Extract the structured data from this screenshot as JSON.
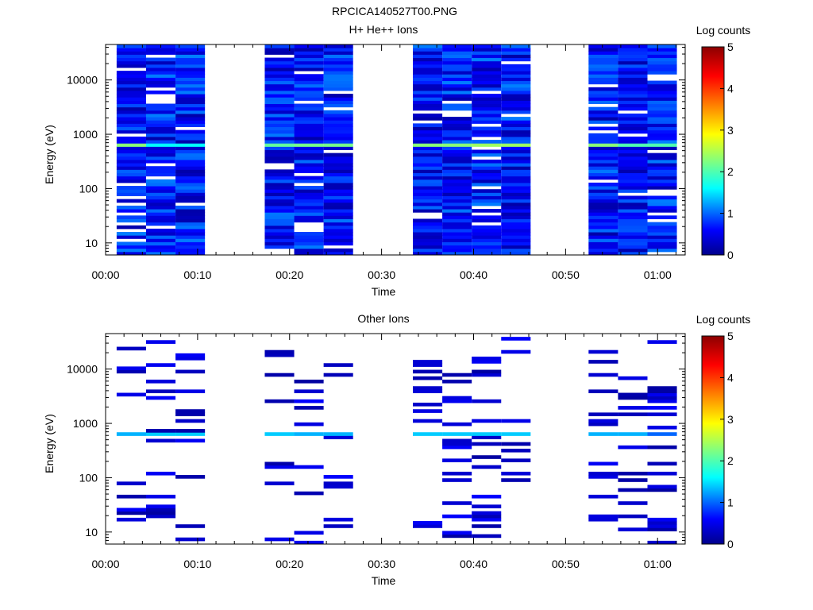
{
  "title": "RPCICA140527T00.PNG",
  "chart_data": [
    {
      "type": "heatmap",
      "title": "H+ He++ Ions",
      "xlabel": "Time",
      "ylabel": "Energy (eV)",
      "colorbar_label": "Log counts",
      "xlim_minutes": [
        0,
        63
      ],
      "ylim": [
        6,
        45000
      ],
      "y_scale": "log",
      "x_ticks": [
        "00:00",
        "00:10",
        "00:20",
        "00:30",
        "00:40",
        "00:50",
        "01:00"
      ],
      "y_ticks": [
        "10",
        "100",
        "1000",
        "10000"
      ],
      "y_tick_values": [
        10,
        100,
        1000,
        10000
      ],
      "colorbar_ticks": [
        "0",
        "1",
        "2",
        "3",
        "4",
        "5"
      ],
      "colorbar_range": [
        0,
        5
      ],
      "time_columns": [
        {
          "start": 1.2,
          "end": 4.4
        },
        {
          "start": 4.4,
          "end": 7.6
        },
        {
          "start": 7.6,
          "end": 10.8
        },
        {
          "start": 17.3,
          "end": 20.5
        },
        {
          "start": 20.5,
          "end": 23.7
        },
        {
          "start": 23.7,
          "end": 26.9
        },
        {
          "start": 33.4,
          "end": 36.6
        },
        {
          "start": 36.6,
          "end": 39.8
        },
        {
          "start": 39.8,
          "end": 43.0
        },
        {
          "start": 43.0,
          "end": 46.2
        },
        {
          "start": 52.5,
          "end": 55.7
        },
        {
          "start": 55.7,
          "end": 58.9
        },
        {
          "start": 58.9,
          "end": 62.1
        }
      ],
      "highlight_band": {
        "energy_low": 560,
        "energy_high": 720,
        "values": [
          2.3,
          1.6,
          1.6,
          2.1,
          2.2,
          2.2,
          2.3,
          2.3,
          2.4,
          2.4,
          2.3,
          2.0,
          2.0
        ]
      },
      "fill_rule": "dense"
    },
    {
      "type": "heatmap",
      "title": "Other Ions",
      "xlabel": "Time",
      "ylabel": "Energy (eV)",
      "colorbar_label": "Log counts",
      "xlim_minutes": [
        0,
        63
      ],
      "ylim": [
        6,
        45000
      ],
      "y_scale": "log",
      "x_ticks": [
        "00:00",
        "00:10",
        "00:20",
        "00:30",
        "00:40",
        "00:50",
        "01:00"
      ],
      "y_ticks": [
        "10",
        "100",
        "1000",
        "10000"
      ],
      "y_tick_values": [
        10,
        100,
        1000,
        10000
      ],
      "colorbar_ticks": [
        "0",
        "1",
        "2",
        "3",
        "4",
        "5"
      ],
      "colorbar_range": [
        0,
        5
      ],
      "time_columns": [
        {
          "start": 1.2,
          "end": 4.4
        },
        {
          "start": 4.4,
          "end": 7.6
        },
        {
          "start": 7.6,
          "end": 10.8
        },
        {
          "start": 17.3,
          "end": 20.5
        },
        {
          "start": 20.5,
          "end": 23.7
        },
        {
          "start": 23.7,
          "end": 26.9
        },
        {
          "start": 33.4,
          "end": 36.6
        },
        {
          "start": 36.6,
          "end": 39.8
        },
        {
          "start": 39.8,
          "end": 43.0
        },
        {
          "start": 43.0,
          "end": 46.2
        },
        {
          "start": 52.5,
          "end": 55.7
        },
        {
          "start": 55.7,
          "end": 58.9
        },
        {
          "start": 58.9,
          "end": 62.1
        }
      ],
      "highlight_band": {
        "energy_low": 580,
        "energy_high": 720,
        "values": [
          1.3,
          1.4,
          1.4,
          1.4,
          1.3,
          1.3,
          1.4,
          1.4,
          1.4,
          1.4,
          1.3,
          1.3,
          1.0
        ]
      },
      "fill_rule": "sparse"
    }
  ]
}
